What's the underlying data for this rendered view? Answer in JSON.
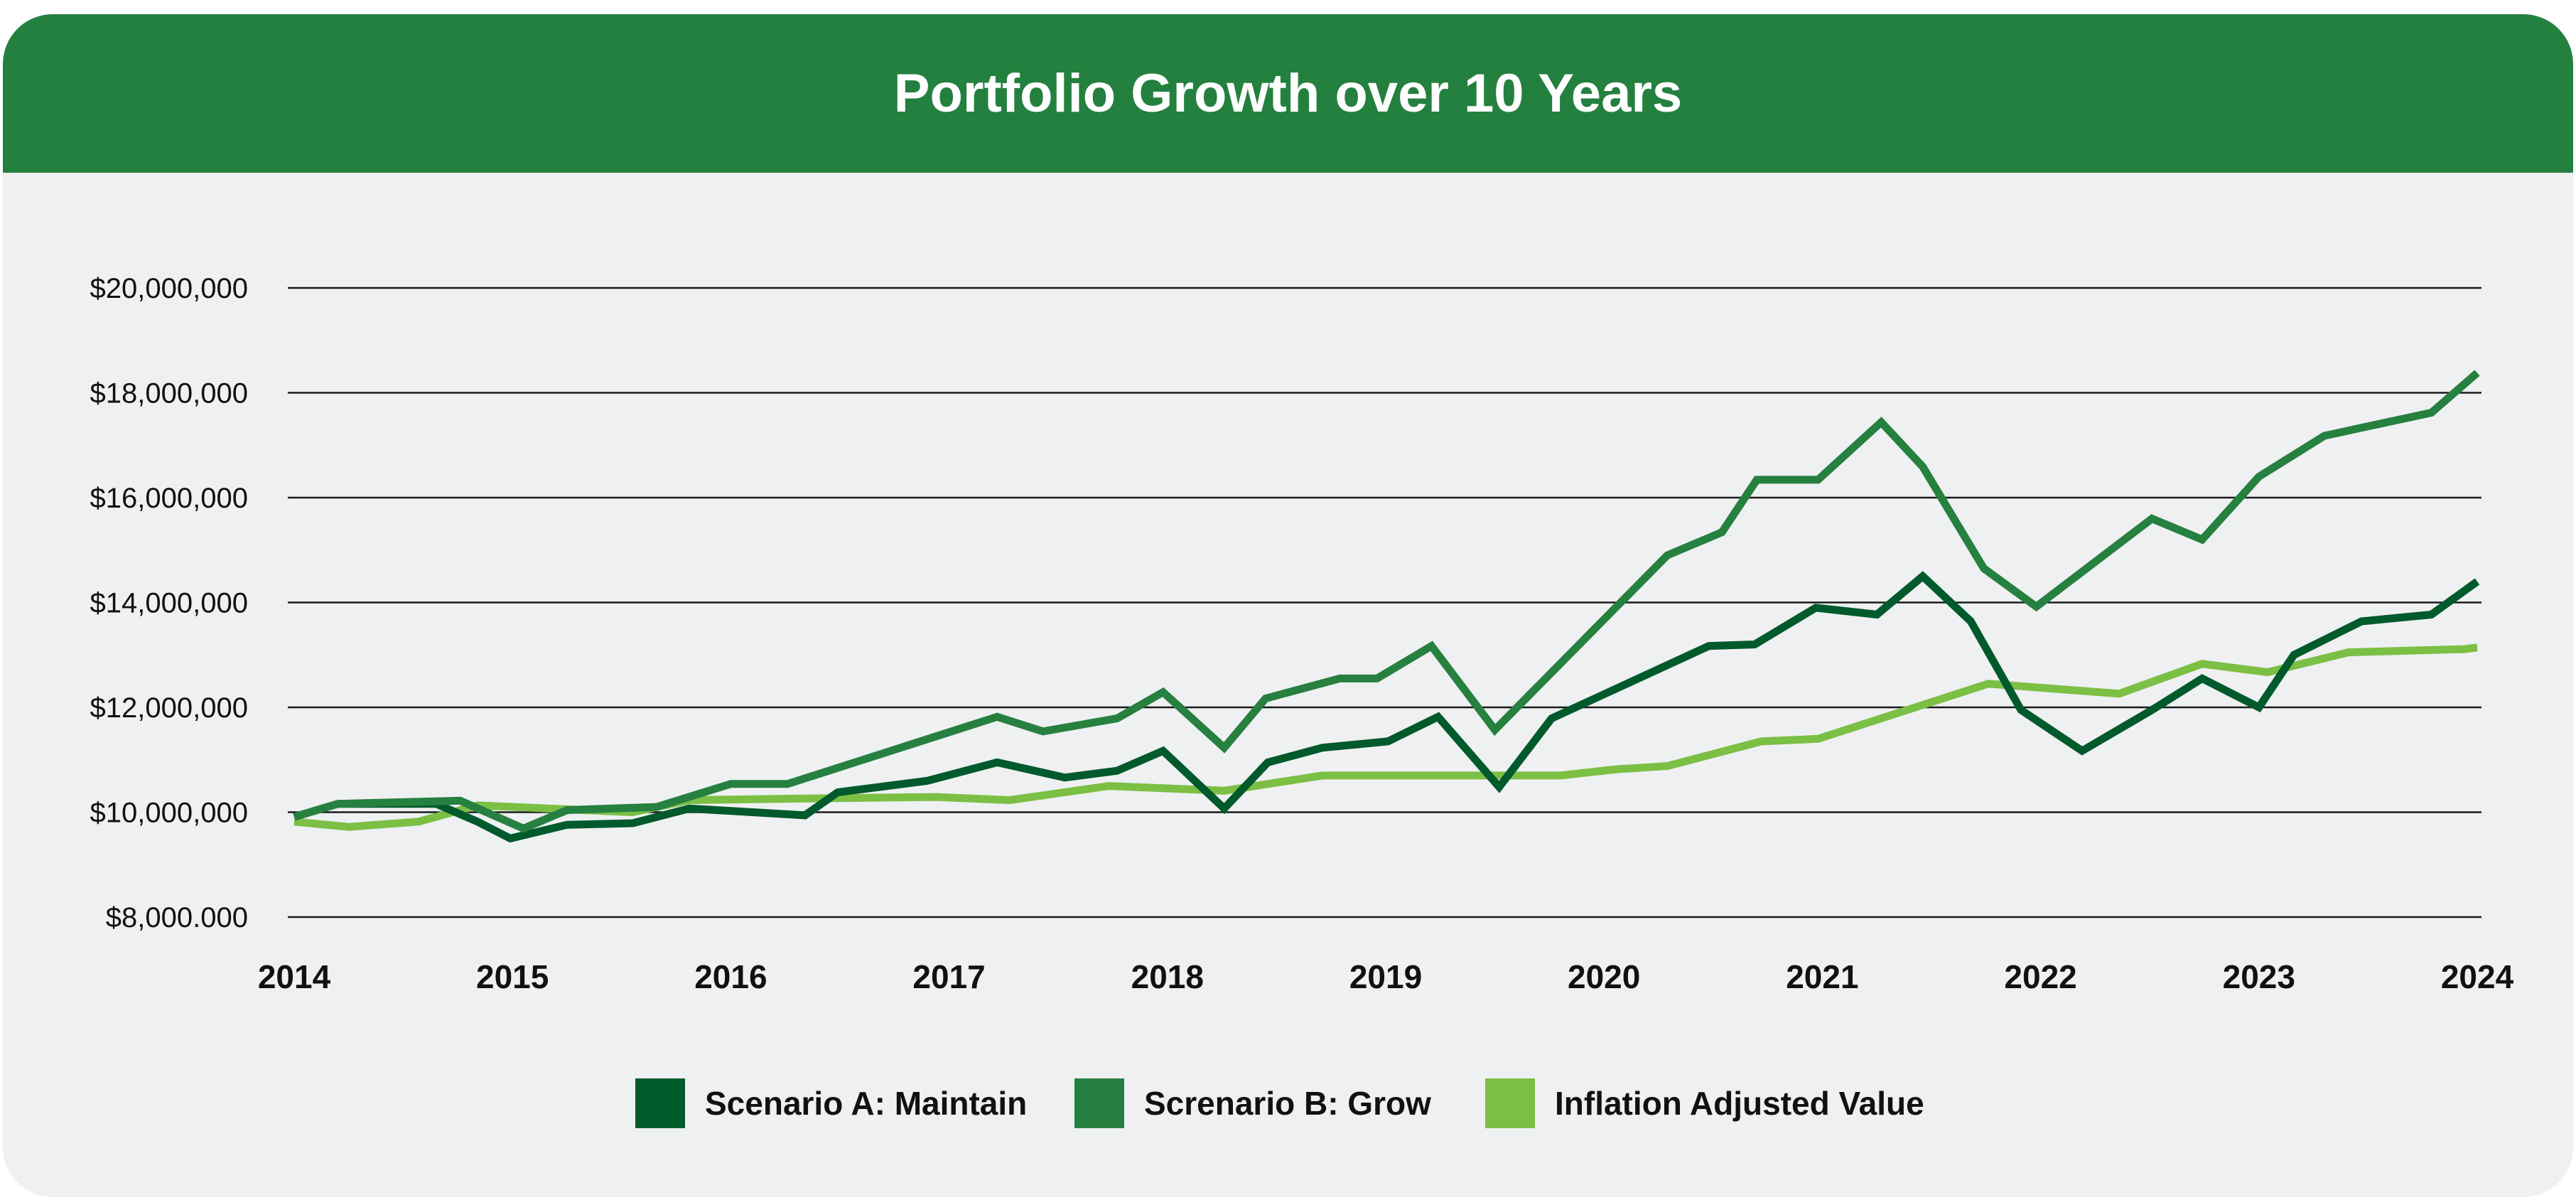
{
  "chart_data": {
    "type": "line",
    "title": "Portfolio Growth over 10 Years",
    "xlabel": "",
    "ylabel": "",
    "xlim": [
      2014,
      2024
    ],
    "ylim": [
      8000000,
      20000000
    ],
    "x_ticks": [
      "2014",
      "2015",
      "2016",
      "2017",
      "2018",
      "2019",
      "2020",
      "2021",
      "2022",
      "2023",
      "2024"
    ],
    "y_ticks": [
      {
        "value": 20000000,
        "label": "$20,000,000"
      },
      {
        "value": 18000000,
        "label": "$18,000,000"
      },
      {
        "value": 16000000,
        "label": "$16,000,000"
      },
      {
        "value": 14000000,
        "label": "$14,000,000"
      },
      {
        "value": 12000000,
        "label": "$12,000,000"
      },
      {
        "value": 10000000,
        "label": "$10,000,000"
      },
      {
        "value": 8000000,
        "label": "$8,000.000"
      }
    ],
    "grid": "horizontal",
    "legend_position": "bottom",
    "series": [
      {
        "name": "Scenario A: Maintain",
        "color": "#005a2b",
        "x": [
          2014.0,
          2014.2,
          2014.65,
          2014.84,
          2014.99,
          2015.25,
          2015.55,
          2015.81,
          2016.34,
          2016.49,
          2016.9,
          2017.22,
          2017.53,
          2017.77,
          2017.98,
          2018.26,
          2018.46,
          2018.71,
          2019.01,
          2019.24,
          2019.52,
          2019.76,
          2020.48,
          2020.69,
          2020.97,
          2021.25,
          2021.46,
          2021.68,
          2021.91,
          2022.19,
          2022.51,
          2022.74,
          2023.0,
          2023.16,
          2023.47,
          2023.79,
          2024.0
        ],
        "y": [
          9910000,
          10160000,
          10160000,
          9820000,
          9500000,
          9760000,
          9790000,
          10070000,
          9940000,
          10380000,
          10600000,
          10950000,
          10660000,
          10790000,
          11170000,
          10070000,
          10950000,
          11230000,
          11350000,
          11820000,
          10480000,
          11790000,
          13170000,
          13200000,
          13900000,
          13770000,
          14500000,
          13640000,
          11950000,
          11170000,
          11950000,
          12550000,
          12000000,
          13000000,
          13640000,
          13770000,
          14400000
        ]
      },
      {
        "name": "Screnario B: Grow",
        "color": "#26803f",
        "x": [
          2014.0,
          2014.2,
          2014.76,
          2015.05,
          2015.25,
          2015.66,
          2016.0,
          2016.26,
          2017.22,
          2017.43,
          2017.77,
          2017.98,
          2018.26,
          2018.45,
          2018.79,
          2018.96,
          2019.21,
          2019.5,
          2020.29,
          2020.54,
          2020.7,
          2020.98,
          2021.27,
          2021.46,
          2021.74,
          2021.98,
          2022.51,
          2022.74,
          2023.0,
          2023.3,
          2023.79,
          2024.0
        ],
        "y": [
          9910000,
          10160000,
          10220000,
          9690000,
          10040000,
          10100000,
          10540000,
          10540000,
          11820000,
          11540000,
          11790000,
          12290000,
          11230000,
          12170000,
          12550000,
          12550000,
          13170000,
          11570000,
          14900000,
          15340000,
          16340000,
          16340000,
          17440000,
          16590000,
          14650000,
          13920000,
          15600000,
          15200000,
          16400000,
          17180000,
          17620000,
          18380000
        ]
      },
      {
        "name": "Inflation Adjusted Value",
        "color": "#7bbf44",
        "x": [
          2014.0,
          2014.25,
          2014.57,
          2014.84,
          2015.55,
          2015.81,
          2016.34,
          2016.94,
          2017.28,
          2017.73,
          2018.26,
          2018.71,
          2019.09,
          2019.8,
          2020.06,
          2020.29,
          2020.72,
          2020.98,
          2021.76,
          2022.36,
          2022.74,
          2023.04,
          2023.41,
          2023.94,
          2024.0
        ],
        "y": [
          9820000,
          9720000,
          9820000,
          10130000,
          10000000,
          10230000,
          10260000,
          10290000,
          10230000,
          10500000,
          10410000,
          10700000,
          10700000,
          10700000,
          10820000,
          10880000,
          11350000,
          11400000,
          12450000,
          12260000,
          12830000,
          12670000,
          13050000,
          13110000,
          13140000
        ]
      }
    ]
  },
  "colors": {
    "header": "#24803f",
    "background": "#eff0f2"
  }
}
